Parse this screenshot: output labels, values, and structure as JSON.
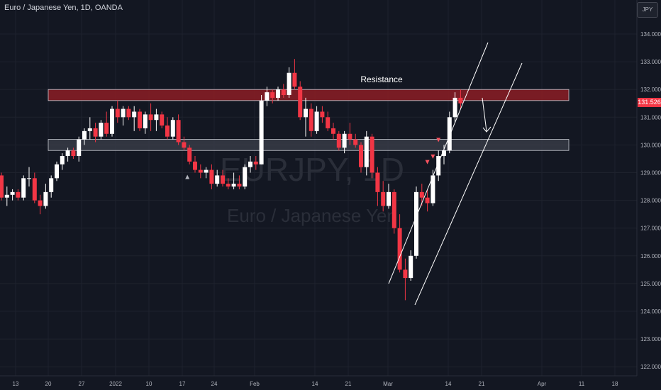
{
  "header": {
    "title": "Euro / Japanese Yen, 1D, OANDA"
  },
  "symbol_button": "JPY",
  "watermark": {
    "symbol": "EURJPY, 1D",
    "name": "Euro / Japanese Yen"
  },
  "colors": {
    "background": "#131722",
    "up": "#ffffff",
    "down": "#f23645",
    "resistance_zone": "#8c1d25",
    "support_zone": "#3a3d48",
    "grid": "#1e222d"
  },
  "chart_data": {
    "type": "candlestick",
    "ylim": [
      121.7,
      135.5
    ],
    "y_ticks": [
      122,
      123,
      124,
      125,
      126,
      127,
      128,
      129,
      130,
      131,
      132,
      133,
      134
    ],
    "y_tick_labels": [
      "122.000",
      "123.000",
      "124.000",
      "125.000",
      "126.000",
      "127.000",
      "128.000",
      "129.000",
      "130.000",
      "131.000",
      "132.000",
      "133.000",
      "134.000"
    ],
    "x_tick_labels": [
      "13",
      "20",
      "27",
      "2022",
      "10",
      "17",
      "24",
      "Feb",
      "14",
      "21",
      "Mar",
      "14",
      "21",
      "Apr",
      "11",
      "18"
    ],
    "last_price": "131.526",
    "zones": [
      {
        "name": "Resistance",
        "from": 131.6,
        "to": 132.0
      },
      {
        "name": "",
        "from": 129.8,
        "to": 130.2
      }
    ],
    "candles": [
      [
        128.9,
        129.0,
        128.0,
        128.1
      ],
      [
        128.1,
        128.5,
        127.8,
        128.2
      ],
      [
        128.2,
        128.4,
        128.0,
        128.3
      ],
      [
        128.3,
        128.4,
        128.0,
        128.1
      ],
      [
        128.1,
        128.9,
        128.0,
        128.8
      ],
      [
        128.8,
        129.2,
        128.5,
        128.8
      ],
      [
        128.8,
        129.0,
        127.9,
        128.0
      ],
      [
        128.0,
        128.2,
        127.5,
        127.8
      ],
      [
        127.8,
        128.6,
        127.7,
        128.3
      ],
      [
        128.3,
        128.9,
        128.1,
        128.8
      ],
      [
        128.8,
        129.4,
        128.7,
        129.3
      ],
      [
        129.3,
        129.7,
        129.1,
        129.6
      ],
      [
        129.6,
        129.9,
        129.4,
        129.8
      ],
      [
        129.8,
        129.9,
        129.5,
        129.6
      ],
      [
        129.6,
        130.3,
        129.4,
        130.2
      ],
      [
        130.2,
        130.6,
        130.0,
        130.5
      ],
      [
        130.5,
        131.0,
        130.2,
        130.6
      ],
      [
        130.6,
        130.8,
        130.1,
        130.3
      ],
      [
        130.3,
        130.9,
        130.2,
        130.8
      ],
      [
        130.8,
        131.2,
        130.3,
        130.4
      ],
      [
        130.4,
        131.4,
        130.3,
        131.3
      ],
      [
        131.3,
        131.6,
        130.8,
        131.0
      ],
      [
        131.0,
        131.4,
        130.7,
        131.3
      ],
      [
        131.3,
        131.4,
        130.9,
        131.0
      ],
      [
        131.0,
        131.4,
        130.5,
        131.2
      ],
      [
        131.2,
        131.3,
        130.5,
        130.6
      ],
      [
        130.6,
        131.2,
        130.4,
        131.1
      ],
      [
        131.1,
        131.5,
        130.5,
        130.9
      ],
      [
        130.9,
        131.3,
        130.5,
        131.1
      ],
      [
        131.1,
        131.2,
        130.6,
        130.7
      ],
      [
        130.7,
        131.0,
        130.2,
        130.3
      ],
      [
        130.3,
        131.0,
        130.2,
        130.9
      ],
      [
        130.9,
        131.1,
        130.0,
        130.1
      ],
      [
        130.1,
        130.3,
        129.8,
        129.9
      ],
      [
        129.9,
        130.0,
        129.3,
        129.4
      ],
      [
        129.4,
        129.6,
        129.0,
        129.1
      ],
      [
        129.1,
        129.3,
        128.8,
        129.0
      ],
      [
        129.0,
        129.2,
        128.8,
        129.1
      ],
      [
        129.1,
        129.3,
        128.4,
        128.6
      ],
      [
        128.6,
        129.1,
        128.5,
        128.9
      ],
      [
        128.9,
        129.1,
        128.5,
        128.6
      ],
      [
        128.6,
        128.8,
        128.4,
        128.5
      ],
      [
        128.5,
        129.0,
        128.4,
        128.6
      ],
      [
        128.6,
        128.9,
        128.4,
        128.5
      ],
      [
        128.5,
        129.3,
        128.4,
        129.2
      ],
      [
        129.2,
        129.6,
        129.0,
        129.4
      ],
      [
        129.4,
        129.6,
        129.1,
        129.3
      ],
      [
        129.3,
        131.8,
        129.3,
        131.6
      ],
      [
        131.6,
        132.1,
        131.4,
        131.9
      ],
      [
        131.9,
        132.0,
        131.5,
        131.7
      ],
      [
        131.7,
        132.1,
        131.6,
        132.0
      ],
      [
        132.0,
        132.2,
        131.7,
        131.8
      ],
      [
        131.8,
        132.8,
        131.7,
        132.6
      ],
      [
        132.6,
        133.1,
        132.0,
        132.1
      ],
      [
        132.1,
        132.3,
        130.9,
        131.0
      ],
      [
        131.0,
        131.7,
        130.3,
        131.3
      ],
      [
        131.3,
        131.5,
        130.3,
        130.5
      ],
      [
        130.5,
        131.4,
        130.4,
        131.2
      ],
      [
        131.2,
        131.4,
        130.8,
        131.0
      ],
      [
        131.0,
        131.2,
        130.5,
        130.6
      ],
      [
        130.6,
        130.8,
        130.2,
        130.4
      ],
      [
        130.4,
        130.5,
        129.8,
        129.9
      ],
      [
        129.9,
        130.5,
        129.7,
        130.4
      ],
      [
        130.4,
        130.8,
        130.0,
        130.2
      ],
      [
        130.2,
        130.4,
        129.9,
        130.0
      ],
      [
        130.0,
        130.1,
        129.0,
        129.2
      ],
      [
        129.2,
        130.5,
        128.9,
        130.3
      ],
      [
        130.3,
        130.4,
        128.8,
        129.0
      ],
      [
        129.0,
        129.2,
        127.8,
        128.3
      ],
      [
        128.3,
        128.7,
        127.6,
        127.8
      ],
      [
        127.8,
        128.6,
        127.7,
        128.3
      ],
      [
        128.3,
        128.4,
        126.8,
        127.0
      ],
      [
        127.0,
        127.5,
        125.4,
        125.5
      ],
      [
        125.5,
        125.9,
        124.4,
        125.2
      ],
      [
        125.2,
        126.2,
        125.1,
        126.0
      ],
      [
        126.0,
        128.5,
        125.9,
        128.3
      ],
      [
        128.3,
        128.6,
        127.8,
        128.1
      ],
      [
        128.1,
        128.4,
        127.6,
        127.9
      ],
      [
        127.9,
        129.1,
        127.8,
        128.9
      ],
      [
        128.9,
        129.8,
        128.7,
        129.6
      ],
      [
        129.6,
        130.0,
        129.3,
        129.8
      ],
      [
        129.8,
        131.2,
        129.7,
        131.0
      ],
      [
        131.0,
        131.9,
        130.8,
        131.7
      ],
      [
        131.7,
        132.0,
        131.3,
        131.5
      ]
    ],
    "arrows_down": [
      {
        "bar": 77,
        "price": 129.2
      },
      {
        "bar": 78,
        "price": 129.4
      },
      {
        "bar": 79,
        "price": 130.0
      }
    ],
    "arrows_up": [
      {
        "bar": 34,
        "price": 129.0
      }
    ]
  }
}
